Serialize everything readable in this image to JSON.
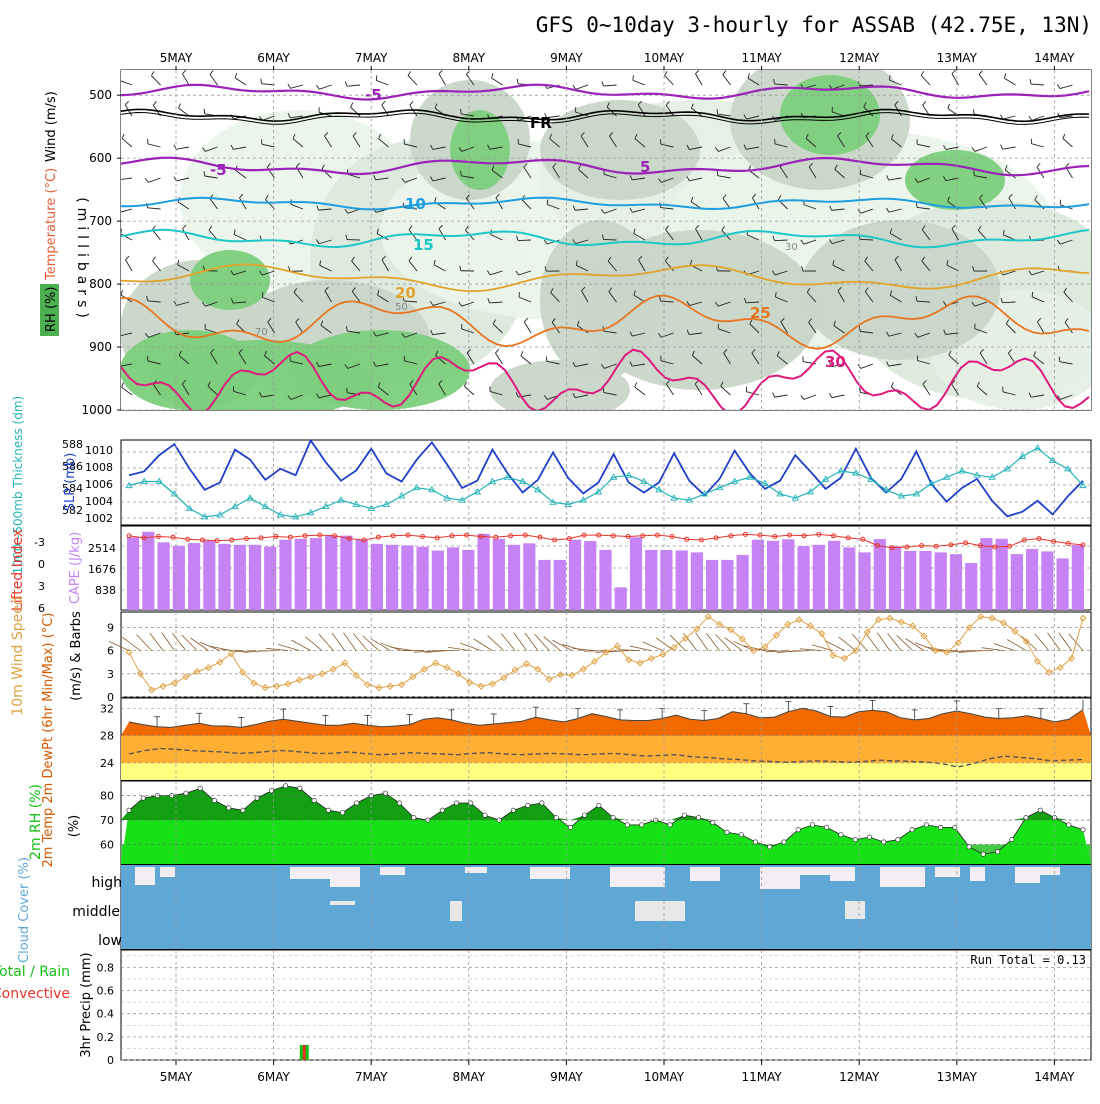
{
  "title": "GFS 0~10day 3-hourly for ASSAB (42.75E, 13N)",
  "chart_data": [
    {
      "id": "upper-air",
      "type": "heatmap",
      "days": [
        "5MAY",
        "6MAY",
        "7MAY",
        "8MAY",
        "9MAY",
        "10MAY",
        "11MAY",
        "12MAY",
        "13MAY",
        "14MAY"
      ],
      "ylabel": "(millibars)",
      "yticks": [
        "500",
        "600",
        "700",
        "800",
        "900",
        "1000"
      ],
      "ylim": [
        460,
        1000
      ],
      "legend_labels": [
        "RH (%)",
        "Temperature (°C)",
        "Wind (m/s)"
      ],
      "isotherm_labels": [
        "-5",
        "FR",
        "-5",
        "5",
        "10",
        "15",
        "20",
        "25",
        "30"
      ],
      "rh_labels": [
        "50",
        "70",
        "30"
      ]
    },
    {
      "id": "slp-thickness",
      "type": "line",
      "ylabel_left": "1000~500mb Thickness (dm)",
      "ylabel_right": "SLP (mb)",
      "left_ticks": [
        "588",
        "586",
        "584",
        "582"
      ],
      "right_ticks": [
        "1010",
        "1008",
        "1006",
        "1004",
        "1002"
      ],
      "series": [
        {
          "name": "SLP (mb)",
          "color": "#1f3fc8",
          "values": [
            1006.8,
            1007.2,
            1009.0,
            1010.2,
            1007.5,
            1005.2,
            1006.0,
            1009.6,
            1008.5,
            1006.3,
            1007.5,
            1006.8,
            1010.6,
            1008.2,
            1006.2,
            1007.3,
            1009.7,
            1007.0,
            1006.1,
            1008.5,
            1010.4,
            1008.0,
            1005.4,
            1006.2,
            1009.6,
            1007.0,
            1004.9,
            1006.3,
            1009.3,
            1006.5,
            1004.8,
            1006.0,
            1009.1,
            1006.0,
            1004.9,
            1006.0,
            1009.2,
            1006.2,
            1004.6,
            1006.4,
            1009.5,
            1007.0,
            1005.3,
            1006.2,
            1009.0,
            1007.2,
            1005.3,
            1006.5,
            1009.7,
            1006.5,
            1004.9,
            1006.4,
            1009.4,
            1005.8,
            1003.9,
            1005.4,
            1006.4,
            1004.0,
            1002.3,
            1002.8,
            1004.0,
            1002.5,
            1004.5,
            1006.2
          ],
          "ylim": [
            1002,
            1010
          ]
        },
        {
          "name": "1000~500mb Thickness (dm)",
          "color": "#22b4b9",
          "values": [
            584.2,
            584.6,
            584.6,
            583.4,
            582.0,
            581.2,
            581.4,
            582.2,
            583.0,
            582.2,
            581.4,
            581.2,
            581.6,
            582.2,
            582.8,
            582.4,
            582.0,
            582.4,
            583.2,
            584.0,
            583.8,
            583.0,
            582.8,
            583.6,
            584.6,
            585.0,
            584.6,
            583.8,
            582.6,
            582.4,
            582.8,
            583.6,
            585.0,
            585.2,
            584.6,
            583.8,
            583.0,
            582.8,
            583.4,
            584.0,
            584.6,
            585.0,
            584.4,
            583.4,
            583.0,
            583.6,
            584.8,
            585.6,
            585.4,
            584.8,
            583.8,
            583.2,
            583.4,
            584.4,
            585.0,
            585.6,
            585.2,
            585.0,
            585.8,
            587.0,
            587.8,
            586.6,
            585.8,
            584.2
          ],
          "ylim": [
            581,
            588
          ]
        }
      ]
    },
    {
      "id": "cape-li",
      "type": "bar",
      "ylabel_left": "Lifted Index",
      "ylabel_right": "CAPE (J/kg)",
      "left_ticks": [
        "-3",
        "0",
        "3",
        "6"
      ],
      "right_ticks": [
        "2514",
        "1676",
        "838"
      ],
      "cape_values": [
        2900,
        3120,
        2700,
        2560,
        2670,
        2760,
        2640,
        2600,
        2600,
        2530,
        2800,
        2840,
        2870,
        2970,
        2970,
        2800,
        2640,
        2600,
        2580,
        2520,
        2370,
        2500,
        2400,
        3040,
        2840,
        2600,
        2660,
        2000,
        2000,
        2800,
        2750,
        2400,
        900,
        2900,
        2400,
        2400,
        2380,
        2300,
        2000,
        2000,
        2200,
        2800,
        2760,
        2820,
        2550,
        2600,
        2760,
        2500,
        2300,
        2830,
        2540,
        2360,
        2360,
        2300,
        2230,
        1870,
        2870,
        2840,
        2230,
        2440,
        2340,
        2060,
        2590
      ],
      "cape_ylim": [
        0,
        3352
      ],
      "li_values": [
        -4.6,
        -4.3,
        -4.5,
        -4.4,
        -4.1,
        -4.0,
        -3.9,
        -4.0,
        -4.2,
        -4.3,
        -4.5,
        -4.4,
        -4.6,
        -4.7,
        -4.6,
        -4.2,
        -4.0,
        -4.4,
        -4.6,
        -4.7,
        -4.5,
        -4.3,
        -4.6,
        -4.7,
        -4.5,
        -4.4,
        -4.6,
        -4.7,
        -4.4,
        -4.0,
        -4.2,
        -4.7,
        -4.7,
        -4.6,
        -4.5,
        -4.6,
        -4.7,
        -4.5,
        -4.1,
        -4.0,
        -4.3,
        -4.6,
        -4.8,
        -4.7,
        -4.5,
        -4.7,
        -4.6,
        -4.8,
        -4.6,
        -4.3,
        -4.1,
        -3.2,
        -2.9,
        -3.0,
        -3.2,
        -3.1,
        -3.3,
        -3.6,
        -3.2,
        -3.0,
        -3.1,
        -4.0,
        -4.2,
        -3.8,
        -3.5,
        -3.3
      ],
      "li_ylim": [
        -6,
        6
      ]
    },
    {
      "id": "wind10m",
      "type": "line",
      "ylabel_left": "10m Wind Speed",
      "ylabel_right": "(m/s) & Barbs",
      "yticks": [
        "9",
        "6",
        "3",
        "0"
      ],
      "ylim": [
        0,
        11
      ],
      "values": [
        5.8,
        3.0,
        0.9,
        1.4,
        1.8,
        2.6,
        3.3,
        3.8,
        4.5,
        5.6,
        3.2,
        1.8,
        1.2,
        1.4,
        1.7,
        2.2,
        2.6,
        3.0,
        3.6,
        4.4,
        2.8,
        1.6,
        1.2,
        1.4,
        1.6,
        2.6,
        3.6,
        4.4,
        3.8,
        3.0,
        1.9,
        1.4,
        1.7,
        2.5,
        3.5,
        4.3,
        3.6,
        2.3,
        2.9,
        2.8,
        3.6,
        4.6,
        5.8,
        6.6,
        4.8,
        4.4,
        5.0,
        5.5,
        6.4,
        7.6,
        8.8,
        10.4,
        9.4,
        8.7,
        7.5,
        6.0,
        6.5,
        8.0,
        9.4,
        10.0,
        9.2,
        8.2,
        5.4,
        5.0,
        6.0,
        8.4,
        10.0,
        10.2,
        9.7,
        9.2,
        7.9,
        6.0,
        5.8,
        7.0,
        9.0,
        10.4,
        10.2,
        9.6,
        8.5,
        7.2,
        4.6,
        3.2,
        3.8,
        5.0,
        10.2
      ]
    },
    {
      "id": "temp2m",
      "type": "area",
      "ylabel": "2m Temp 2m DewPt (6hr Min/Max) (°C)",
      "yticks": [
        "32",
        "28",
        "24"
      ],
      "ylim": [
        21.5,
        33.5
      ],
      "temp": [
        30.0,
        29.6,
        29.3,
        29.2,
        29.5,
        29.8,
        29.4,
        29.4,
        29.2,
        29.6,
        30.1,
        30.4,
        30.1,
        29.8,
        29.5,
        29.5,
        29.8,
        29.5,
        29.3,
        29.4,
        29.6,
        30.4,
        30.6,
        30.3,
        29.8,
        29.5,
        29.7,
        29.9,
        30.1,
        30.7,
        30.3,
        30.0,
        30.5,
        31.2,
        30.8,
        30.3,
        30.2,
        30.2,
        30.5,
        31.0,
        30.4,
        30.2,
        30.5,
        31.5,
        31.2,
        30.6,
        30.7,
        31.5,
        32.0,
        31.6,
        30.8,
        30.7,
        31.5,
        31.7,
        31.5,
        30.6,
        30.3,
        30.5,
        31.2,
        31.6,
        31.2,
        30.7,
        30.5,
        30.6,
        30.9,
        30.5,
        30.0,
        30.4,
        31.8
      ],
      "dewpt": [
        25.3,
        25.8,
        26.1,
        26.0,
        25.8,
        25.7,
        25.6,
        25.4,
        25.5,
        25.7,
        25.8,
        25.6,
        25.4,
        25.4,
        25.6,
        25.4,
        25.2,
        25.3,
        25.5,
        25.4,
        25.3,
        25.2,
        25.4,
        25.5,
        25.3,
        25.2,
        25.3,
        25.4,
        25.3,
        25.2,
        25.3,
        25.4,
        25.2,
        25.0,
        25.1,
        25.2,
        24.9,
        24.8,
        24.6,
        24.5,
        24.3,
        24.2,
        24.1,
        24.2,
        24.3,
        24.2,
        24.1,
        24.2,
        24.4,
        24.3,
        24.2,
        24.1,
        23.9,
        23.4,
        23.9,
        24.6,
        25.0,
        24.8,
        24.6,
        24.3,
        24.4,
        24.5
      ]
    },
    {
      "id": "rh2m",
      "type": "area",
      "ylabel": "2m RH (%)",
      "yticks": [
        "80",
        "70",
        "60"
      ],
      "ylim": [
        52,
        86
      ],
      "values": [
        74,
        79,
        80,
        80,
        81,
        83,
        78,
        75,
        74,
        79,
        82,
        84,
        83,
        78,
        74,
        73,
        77,
        80,
        81,
        77,
        71,
        70,
        74,
        77,
        77,
        72,
        70,
        74,
        76,
        77,
        71,
        67,
        72,
        76,
        71,
        68,
        68,
        70,
        68,
        72,
        71,
        69,
        65,
        64,
        61,
        59,
        61,
        66,
        68,
        67,
        64,
        62,
        63,
        61,
        62,
        66,
        68,
        67,
        67,
        59,
        56,
        57,
        62,
        71,
        74,
        71,
        68,
        66
      ]
    },
    {
      "id": "cloud",
      "type": "area",
      "ylabel": "Cloud Cover (%)",
      "row_labels": [
        "high",
        "middle",
        "low"
      ]
    },
    {
      "id": "precip",
      "type": "bar",
      "ylabel_left": "Total / Rain Convective",
      "ylabel_right": "3hr Precip (mm)",
      "yticks": [
        "0.8",
        "0.6",
        "0.4",
        "0.2",
        "0"
      ],
      "ylim": [
        0,
        0.95
      ],
      "run_total": "Run Total = 0.13",
      "bars": [
        {
          "day_index": 1.35,
          "value": 0.13
        }
      ]
    }
  ],
  "colors": {
    "slp": "#1f3fc8",
    "thickness": "#22b4b9",
    "cape": "#c583f5",
    "li": "#e8342a",
    "wind": "#e0a243",
    "barb": "#8b5a2b",
    "rh": "#16c016",
    "cloud": "#5fa8d6"
  }
}
